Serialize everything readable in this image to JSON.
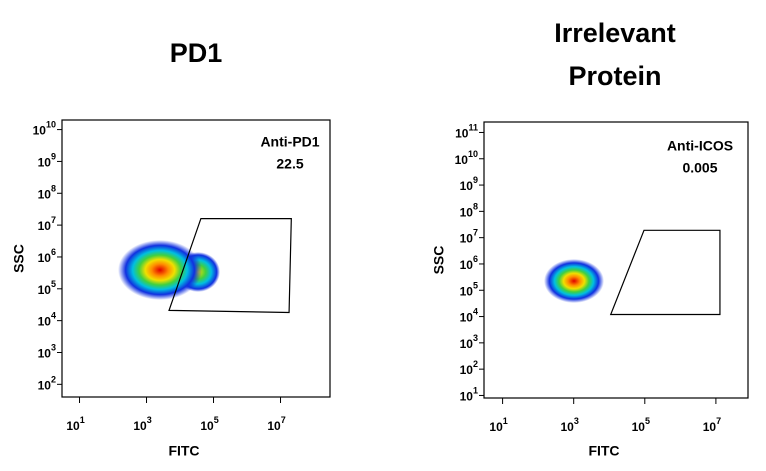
{
  "chart_data": [
    {
      "type": "flow-density",
      "title": [
        "PD1"
      ],
      "xlabel": "FITC",
      "ylabel": "SSC",
      "log_scale": true,
      "xlim": [
        3,
        300000000
      ],
      "ylim": [
        40,
        20000000000
      ],
      "xticks": [
        {
          "value": 10,
          "label": "10",
          "exponent": "1"
        },
        {
          "value": 1000,
          "label": "10",
          "exponent": "3"
        },
        {
          "value": 100000,
          "label": "10",
          "exponent": "5"
        },
        {
          "value": 10000000,
          "label": "10",
          "exponent": "7"
        }
      ],
      "yticks": [
        {
          "value": 100,
          "label": "10",
          "exponent": "2"
        },
        {
          "value": 1000,
          "label": "10",
          "exponent": "3"
        },
        {
          "value": 10000,
          "label": "10",
          "exponent": "4"
        },
        {
          "value": 100000,
          "label": "10",
          "exponent": "5"
        },
        {
          "value": 1000000,
          "label": "10",
          "exponent": "6"
        },
        {
          "value": 10000000,
          "label": "10",
          "exponent": "7"
        },
        {
          "value": 100000000,
          "label": "10",
          "exponent": "8"
        },
        {
          "value": 1000000000,
          "label": "10",
          "exponent": "9"
        },
        {
          "value": 10000000000,
          "label": "10",
          "exponent": "10"
        }
      ],
      "gate": {
        "name": "Anti-PD1",
        "value": 22.5,
        "x": [
          42000,
          21000000,
          18000000,
          4700
        ],
        "y": [
          16000000,
          16000000,
          18000,
          21000
        ]
      }
    },
    {
      "type": "flow-density",
      "title": [
        "Irrelevant",
        "Protein"
      ],
      "xlabel": "FITC",
      "ylabel": "SSC",
      "log_scale": true,
      "xlim": [
        3,
        80000000
      ],
      "ylim": [
        8,
        250000000000
      ],
      "xticks": [
        {
          "value": 10,
          "label": "10",
          "exponent": "1"
        },
        {
          "value": 1000,
          "label": "10",
          "exponent": "3"
        },
        {
          "value": 100000,
          "label": "10",
          "exponent": "5"
        },
        {
          "value": 10000000,
          "label": "10",
          "exponent": "7"
        }
      ],
      "yticks": [
        {
          "value": 10,
          "label": "10",
          "exponent": "1"
        },
        {
          "value": 100,
          "label": "10",
          "exponent": "2"
        },
        {
          "value": 1000,
          "label": "10",
          "exponent": "3"
        },
        {
          "value": 10000,
          "label": "10",
          "exponent": "4"
        },
        {
          "value": 100000,
          "label": "10",
          "exponent": "5"
        },
        {
          "value": 1000000,
          "label": "10",
          "exponent": "6"
        },
        {
          "value": 10000000,
          "label": "10",
          "exponent": "7"
        },
        {
          "value": 100000000,
          "label": "10",
          "exponent": "8"
        },
        {
          "value": 1000000000,
          "label": "10",
          "exponent": "9"
        },
        {
          "value": 10000000000,
          "label": "10",
          "exponent": "10"
        },
        {
          "value": 100000000000,
          "label": "10",
          "exponent": "11"
        }
      ],
      "gate": {
        "name": "Anti-ICOS",
        "value": 0.005,
        "x": [
          95000,
          13000000,
          13000000,
          11000
        ],
        "y": [
          19000000,
          19000000,
          12000,
          12000
        ]
      }
    }
  ]
}
